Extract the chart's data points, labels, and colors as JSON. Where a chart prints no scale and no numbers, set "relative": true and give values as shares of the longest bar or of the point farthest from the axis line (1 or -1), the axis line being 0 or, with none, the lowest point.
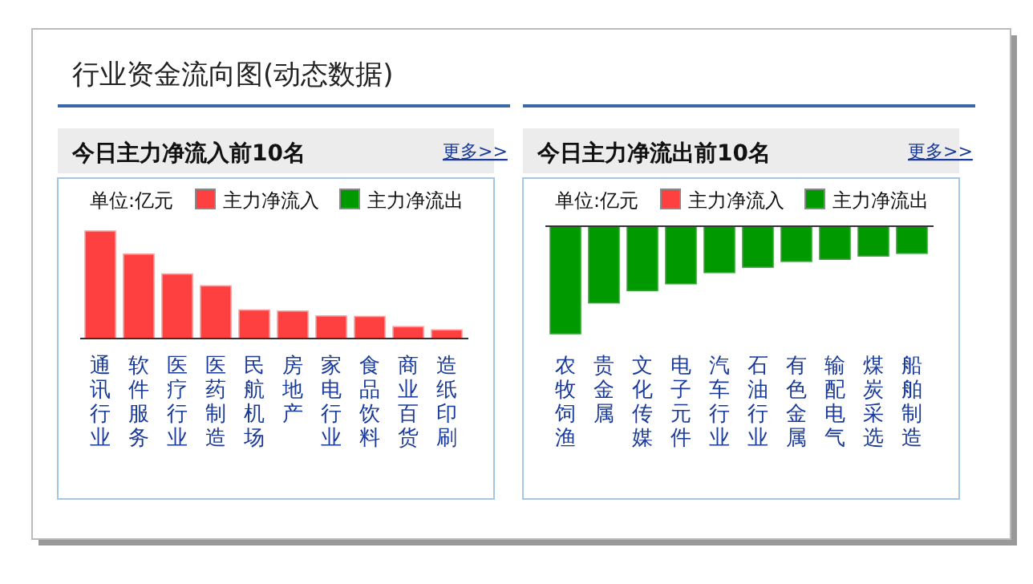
{
  "chart_data": [
    {
      "type": "bar",
      "title": "今日主力净流入前10名",
      "relative": true,
      "legend": "top",
      "annotations": [
        "行业资金流向图(动态数据)",
        "单位:亿元",
        "更多>>"
      ],
      "categories": [
        "通讯行业",
        "软件服务",
        "医疗行业",
        "医药制造",
        "民航机场",
        "房地产",
        "家电行业",
        "食品饮料",
        "商业百货",
        "造纸印刷"
      ],
      "series": [
        {
          "name": "主力净流入",
          "color": "#ff4040",
          "values": [
            1,
            0.785,
            0.6,
            0.49,
            0.265,
            0.255,
            0.21,
            0.205,
            0.11,
            0.08
          ]
        },
        {
          "name": "主力净流出",
          "color": "#009900",
          "values": [
            null,
            null,
            null,
            null,
            null,
            null,
            null,
            null,
            null,
            null
          ]
        }
      ]
    },
    {
      "type": "bar",
      "title": "今日主力净流出前10名",
      "relative": true,
      "legend": "top",
      "annotations": [
        "单位:亿元",
        "更多>>"
      ],
      "categories": [
        "农牧饲渔",
        "贵金属",
        "文化传媒",
        "电子元件",
        "汽车行业",
        "石油行业",
        "有色金属",
        "输配电气",
        "煤炭采选",
        "船舶制造"
      ],
      "series": [
        {
          "name": "主力净流入",
          "color": "#ff4040",
          "values": [
            null,
            null,
            null,
            null,
            null,
            null,
            null,
            null,
            null,
            null
          ]
        },
        {
          "name": "主力净流出",
          "color": "#009900",
          "values": [
            -1,
            -0.713,
            -0.599,
            -0.535,
            -0.431,
            -0.381,
            -0.327,
            -0.307,
            -0.277,
            -0.252
          ]
        }
      ]
    }
  ]
}
